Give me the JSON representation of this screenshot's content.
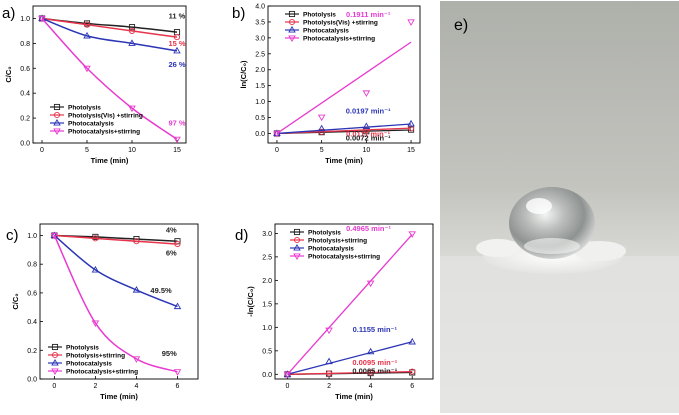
{
  "panels": [
    {
      "letter": "a)",
      "type": "line",
      "xlabel": "Time (min)",
      "ylabel": "C/C₀",
      "xlim": [
        -1,
        16
      ],
      "ylim": [
        0,
        1.1
      ],
      "xticks": [
        0,
        5,
        10,
        15
      ],
      "yticks": [
        0.0,
        0.2,
        0.4,
        0.6,
        0.8,
        1.0
      ],
      "ytick_decimals": 1,
      "fit": "curve",
      "legend": [
        "Photolysis",
        "Photolysis(Vis) +stirring",
        "Photocatalysis",
        "Photocatalysis+stirring"
      ],
      "x": [
        0,
        5,
        10,
        15
      ],
      "series": [
        {
          "values": [
            1.0,
            0.96,
            0.93,
            0.89
          ],
          "color": "#222222",
          "marker": "square"
        },
        {
          "values": [
            1.0,
            0.95,
            0.9,
            0.85
          ],
          "color": "#e8334a",
          "marker": "circle"
        },
        {
          "values": [
            1.0,
            0.86,
            0.8,
            0.74
          ],
          "color": "#2b35b5",
          "marker": "triangle-up"
        },
        {
          "values": [
            1.0,
            0.6,
            0.28,
            0.03
          ],
          "color": "#e83ad0",
          "marker": "triangle-down"
        }
      ],
      "annotations": [
        {
          "text": "11 %",
          "color": "#222222",
          "x": 15,
          "y": 1.0
        },
        {
          "text": "15 %",
          "color": "#e8334a",
          "x": 15,
          "y": 0.78
        },
        {
          "text": "26 %",
          "color": "#2b35b5",
          "x": 15,
          "y": 0.61
        },
        {
          "text": "97 %",
          "color": "#e83ad0",
          "x": 15,
          "y": 0.14
        }
      ]
    },
    {
      "letter": "b)",
      "type": "scatter",
      "xlabel": "Time (min)",
      "ylabel": "ln(C/C₀)",
      "xlim": [
        -1,
        16
      ],
      "ylim": [
        -0.3,
        4.0
      ],
      "xticks": [
        0,
        5,
        10,
        15
      ],
      "yticks": [
        0.0,
        0.5,
        1.0,
        1.5,
        2.0,
        2.5,
        3.0,
        3.5,
        4.0
      ],
      "ytick_decimals": 1,
      "fit": "linear",
      "legend": [
        "Photolysis",
        "Photolysis(Vis) +stirring",
        "Photocatalysis",
        "Photocatalysis+stirring"
      ],
      "x": [
        0,
        5,
        10,
        15
      ],
      "series": [
        {
          "values": [
            0,
            0.04,
            0.07,
            0.12
          ],
          "slope": 0.0072,
          "color": "#222222",
          "marker": "square"
        },
        {
          "values": [
            0,
            0.05,
            0.1,
            0.16
          ],
          "slope": 0.0111,
          "color": "#e8334a",
          "marker": "circle"
        },
        {
          "values": [
            0,
            0.15,
            0.22,
            0.3
          ],
          "slope": 0.0197,
          "color": "#2b35b5",
          "marker": "triangle-up"
        },
        {
          "values": [
            0,
            0.51,
            1.27,
            3.5
          ],
          "slope": 0.1911,
          "color": "#e83ad0",
          "marker": "triangle-down"
        }
      ],
      "annotations": [
        {
          "text": "0.1911 min⁻¹",
          "color": "#e83ad0",
          "x": 10.2,
          "y": 3.65
        },
        {
          "text": "0.0197 min⁻¹",
          "color": "#2b35b5",
          "x": 10.2,
          "y": 0.62
        },
        {
          "text": "0.0111 min⁻¹",
          "color": "#e8334a",
          "x": 10.2,
          "y": -0.1
        },
        {
          "text": "0.0072 min⁻¹",
          "color": "#222222",
          "x": 10.2,
          "y": -0.22
        }
      ]
    },
    {
      "letter": "c)",
      "type": "line",
      "xlabel": "Time (min)",
      "ylabel": "C/C₀",
      "xlim": [
        -0.7,
        7.0
      ],
      "ylim": [
        0,
        1.08
      ],
      "xticks": [
        0,
        2,
        4,
        6
      ],
      "yticks": [
        0.0,
        0.2,
        0.4,
        0.6,
        0.8,
        1.0
      ],
      "ytick_decimals": 1,
      "fit": "curve",
      "legend": [
        "Photolysis",
        "Photolysis+stirring",
        "Photocatalysis",
        "Photocatalysis+stirring"
      ],
      "x": [
        0,
        2,
        4,
        6
      ],
      "series": [
        {
          "values": [
            1.0,
            0.99,
            0.975,
            0.96
          ],
          "color": "#222222",
          "marker": "square"
        },
        {
          "values": [
            1.0,
            0.98,
            0.96,
            0.94
          ],
          "color": "#e8334a",
          "marker": "circle"
        },
        {
          "values": [
            1.0,
            0.76,
            0.62,
            0.505
          ],
          "color": "#2b35b5",
          "marker": "triangle-up"
        },
        {
          "values": [
            1.0,
            0.39,
            0.14,
            0.05
          ],
          "color": "#e83ad0",
          "marker": "triangle-down"
        }
      ],
      "annotations": [
        {
          "text": "4%",
          "color": "#222222",
          "x": 5.7,
          "y": 1.02
        },
        {
          "text": "6%",
          "color": "#222222",
          "x": 5.7,
          "y": 0.86
        },
        {
          "text": "49.5%",
          "color": "#222222",
          "x": 5.2,
          "y": 0.6
        },
        {
          "text": "95%",
          "color": "#222222",
          "x": 5.6,
          "y": 0.16
        }
      ]
    },
    {
      "letter": "d)",
      "type": "scatter",
      "xlabel": "Time (min)",
      "ylabel": "-ln(C/C₀)",
      "xlim": [
        -0.6,
        7.0
      ],
      "ylim": [
        -0.1,
        3.2
      ],
      "xticks": [
        0,
        2,
        4,
        6
      ],
      "yticks": [
        0.0,
        0.5,
        1.0,
        1.5,
        2.0,
        2.5,
        3.0
      ],
      "ytick_decimals": 1,
      "fit": "linear",
      "legend": [
        "Photolysis",
        "Photolysis+stirring",
        "Photocatalysis",
        "Photocatalysis+stirring"
      ],
      "x": [
        0,
        2,
        4,
        6
      ],
      "series": [
        {
          "values": [
            0,
            0.013,
            0.026,
            0.039
          ],
          "slope": 0.0065,
          "color": "#222222",
          "marker": "square"
        },
        {
          "values": [
            0,
            0.019,
            0.038,
            0.057
          ],
          "slope": 0.0095,
          "color": "#e8334a",
          "marker": "circle"
        },
        {
          "values": [
            0,
            0.27,
            0.48,
            0.69
          ],
          "slope": 0.1155,
          "color": "#2b35b5",
          "marker": "triangle-up"
        },
        {
          "values": [
            0,
            0.94,
            1.94,
            2.99
          ],
          "slope": 0.4965,
          "color": "#e83ad0",
          "marker": "triangle-down"
        }
      ],
      "annotations": [
        {
          "text": "0.4965 min⁻¹",
          "color": "#e83ad0",
          "x": 3.9,
          "y": 3.05
        },
        {
          "text": "0.1155 min⁻¹",
          "color": "#2b35b5",
          "x": 4.2,
          "y": 0.9
        },
        {
          "text": "0.0095 min⁻¹",
          "color": "#e8334a",
          "x": 4.2,
          "y": 0.2
        },
        {
          "text": "0.0065 min⁻¹",
          "color": "#222222",
          "x": 4.2,
          "y": 0.02
        }
      ]
    }
  ],
  "chart_data": [
    {
      "type": "line",
      "panel": "a)",
      "xlabel": "Time (min)",
      "ylabel": "C/C₀",
      "x": [
        0,
        5,
        10,
        15
      ],
      "series": [
        {
          "name": "Photolysis",
          "values": [
            1.0,
            0.96,
            0.93,
            0.89
          ]
        },
        {
          "name": "Photolysis(Vis) +stirring",
          "values": [
            1.0,
            0.95,
            0.9,
            0.85
          ]
        },
        {
          "name": "Photocatalysis",
          "values": [
            1.0,
            0.86,
            0.8,
            0.74
          ]
        },
        {
          "name": "Photocatalysis+stirring",
          "values": [
            1.0,
            0.6,
            0.28,
            0.03
          ]
        }
      ],
      "ylim": [
        0,
        1.1
      ],
      "legend": "bottom-left"
    },
    {
      "type": "scatter",
      "panel": "b)",
      "xlabel": "Time (min)",
      "ylabel": "ln(C/C₀)",
      "x": [
        0,
        5,
        10,
        15
      ],
      "series": [
        {
          "name": "Photolysis",
          "values": [
            0,
            0.04,
            0.07,
            0.12
          ]
        },
        {
          "name": "Photolysis(Vis) +stirring",
          "values": [
            0,
            0.05,
            0.1,
            0.16
          ]
        },
        {
          "name": "Photocatalysis",
          "values": [
            0,
            0.15,
            0.22,
            0.3
          ]
        },
        {
          "name": "Photocatalysis+stirring",
          "values": [
            0,
            0.51,
            1.27,
            3.5
          ]
        }
      ],
      "ylim": [
        -0.3,
        4.0
      ],
      "legend": "top-left"
    },
    {
      "type": "line",
      "panel": "c)",
      "xlabel": "Time (min)",
      "ylabel": "C/C₀",
      "x": [
        0,
        2,
        4,
        6
      ],
      "series": [
        {
          "name": "Photolysis",
          "values": [
            1.0,
            0.99,
            0.975,
            0.96
          ]
        },
        {
          "name": "Photolysis+stirring",
          "values": [
            1.0,
            0.98,
            0.96,
            0.94
          ]
        },
        {
          "name": "Photocatalysis",
          "values": [
            1.0,
            0.76,
            0.62,
            0.505
          ]
        },
        {
          "name": "Photocatalysis+stirring",
          "values": [
            1.0,
            0.39,
            0.14,
            0.05
          ]
        }
      ],
      "ylim": [
        0,
        1.08
      ],
      "legend": "bottom-left"
    },
    {
      "type": "scatter",
      "panel": "d)",
      "xlabel": "Time (min)",
      "ylabel": "-ln(C/C₀)",
      "x": [
        0,
        2,
        4,
        6
      ],
      "series": [
        {
          "name": "Photolysis",
          "values": [
            0,
            0.013,
            0.026,
            0.039
          ]
        },
        {
          "name": "Photolysis+stirring",
          "values": [
            0,
            0.019,
            0.038,
            0.057
          ]
        },
        {
          "name": "Photocatalysis",
          "values": [
            0,
            0.27,
            0.48,
            0.69
          ]
        },
        {
          "name": "Photocatalysis+stirring",
          "values": [
            0,
            0.94,
            1.94,
            2.99
          ]
        }
      ],
      "ylim": [
        -0.1,
        3.2
      ],
      "legend": "top-left"
    }
  ],
  "photo": {
    "letter": "e)",
    "colors": {
      "background": "#b9b9b3",
      "surface": "#e6e6e4",
      "powder": "#f6f6f6",
      "droplet": "#d0d2d0"
    }
  }
}
